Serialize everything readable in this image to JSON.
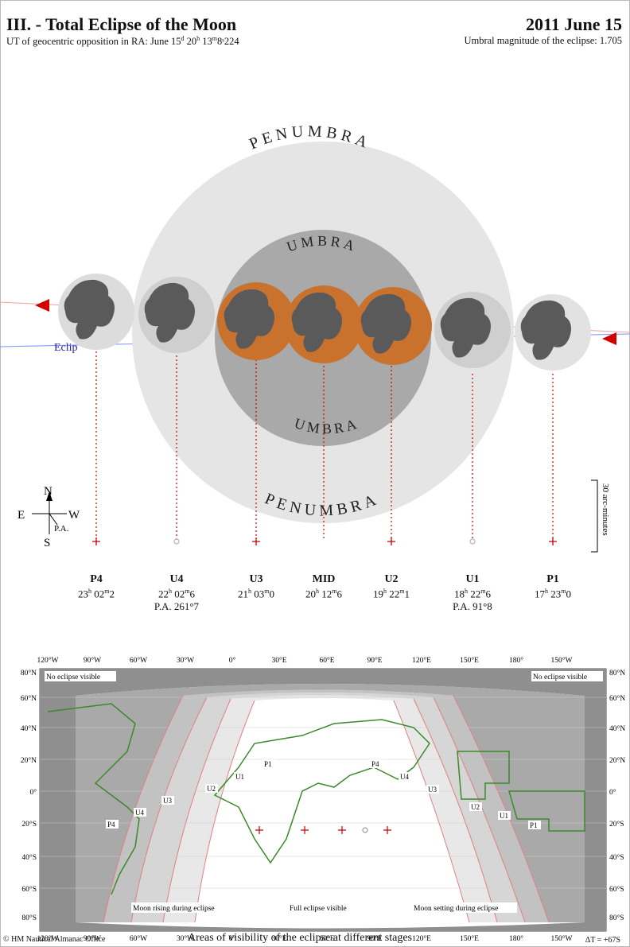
{
  "header": {
    "title": "III. - Total Eclipse of the Moon",
    "date": "2011 June 15",
    "subtitle_prefix": "UT of geocentric opposition in RA: June 15",
    "subtitle_day_sup": "d",
    "subtitle_h": "20",
    "subtitle_h_sup": "h",
    "subtitle_m": "13",
    "subtitle_m_sup": "m",
    "subtitle_s": "8ˢ224",
    "magnitude": "Umbral magnitude of the eclipse: 1.705"
  },
  "diagram": {
    "penumbra_top": "PENUMBRA",
    "penumbra_bottom": "PENUMBRA",
    "umbra_top": "UMBRA",
    "umbra_bottom": "UMBRA",
    "ecliptic_label": "Eclip",
    "scale_label": "30 arc-minutes",
    "compass": {
      "n": "N",
      "s": "S",
      "e": "E",
      "w": "W",
      "pa": "P.A."
    },
    "colors": {
      "penumbra": "#e5e5e5",
      "umbra": "#a9a9a9",
      "eclipsed_moon": "#c8722e",
      "moon": "#dcdcdc",
      "maria": "#5a5a5a",
      "marker": "#d30000"
    }
  },
  "events": [
    {
      "label": "P4",
      "h": "23",
      "m": "02",
      "s": "2",
      "pa": ""
    },
    {
      "label": "U4",
      "h": "22",
      "m": "02",
      "s": "6",
      "pa": "P.A. 261°7"
    },
    {
      "label": "U3",
      "h": "21",
      "m": "03",
      "s": "0",
      "pa": ""
    },
    {
      "label": "MID",
      "h": "20",
      "m": "12",
      "s": "6",
      "pa": ""
    },
    {
      "label": "U2",
      "h": "19",
      "m": "22",
      "s": "1",
      "pa": ""
    },
    {
      "label": "U1",
      "h": "18",
      "m": "22",
      "s": "6",
      "pa": "P.A. 91°8"
    },
    {
      "label": "P1",
      "h": "17",
      "m": "23",
      "s": "0",
      "pa": ""
    }
  ],
  "map": {
    "top_longitudes": [
      "120°W",
      "90°W",
      "60°W",
      "30°W",
      "0°",
      "30°E",
      "60°E",
      "90°E",
      "120°E",
      "150°E",
      "180°",
      "150°W"
    ],
    "bottom_longitudes": [
      "120°W",
      "90°W",
      "60°W",
      "30°W",
      "0°",
      "30°E",
      "60°E",
      "90°E",
      "120°E",
      "150°E",
      "180°",
      "150°W"
    ],
    "left_latitudes": [
      "80°N",
      "60°N",
      "40°N",
      "20°N",
      "0°",
      "20°S",
      "40°S",
      "60°S",
      "80°S"
    ],
    "right_latitudes": [
      "80°N",
      "60°N",
      "40°N",
      "20°N",
      "0°",
      "20°S",
      "40°S",
      "60°S",
      "80°S"
    ],
    "no_eclipse_left": "No eclipse visible",
    "no_eclipse_right": "No eclipse visible",
    "moon_rising": "Moon rising during eclipse",
    "full_eclipse": "Full eclipse visible",
    "moon_setting": "Moon setting during eclipse",
    "curve_labels_left": [
      "P4",
      "U4",
      "U3",
      "U2",
      "U1",
      "P1"
    ],
    "curve_labels_right": [
      "P4",
      "U4",
      "U3",
      "U2",
      "U1",
      "P1"
    ],
    "copyright": "© HM Nautical Almanac Office",
    "caption": "Areas of visibility of the eclipse at different stages",
    "delta_t": "ΔT = +67S"
  }
}
